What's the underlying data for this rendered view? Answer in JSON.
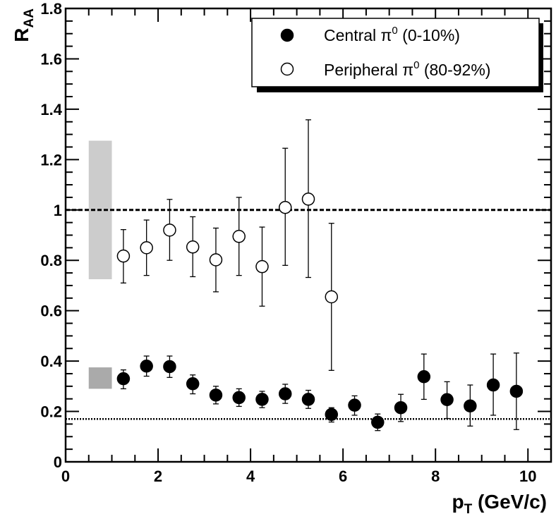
{
  "chart_data": {
    "type": "scatter",
    "title": "",
    "xlabel": {
      "main": "p",
      "sub": "T",
      "rest": " (GeV/c)"
    },
    "ylabel": {
      "main": "R",
      "sub": "AA"
    },
    "xlim": [
      0,
      10.5
    ],
    "ylim": [
      0,
      1.8
    ],
    "x_ticks": [
      {
        "value": 0,
        "label": "0"
      },
      {
        "value": 2,
        "label": "2"
      },
      {
        "value": 4,
        "label": "4"
      },
      {
        "value": 6,
        "label": "6"
      },
      {
        "value": 8,
        "label": "8"
      },
      {
        "value": 10,
        "label": "10"
      }
    ],
    "y_ticks": [
      {
        "value": 0,
        "label": "0"
      },
      {
        "value": 0.2,
        "label": "0.2"
      },
      {
        "value": 0.4,
        "label": "0.4"
      },
      {
        "value": 0.6,
        "label": "0.6"
      },
      {
        "value": 0.8,
        "label": "0.8"
      },
      {
        "value": 1.0,
        "label": "1"
      },
      {
        "value": 1.2,
        "label": "1.2"
      },
      {
        "value": 1.4,
        "label": "1.4"
      },
      {
        "value": 1.6,
        "label": "1.6"
      },
      {
        "value": 1.8,
        "label": "1.8"
      }
    ],
    "grid": false,
    "legend_position": "top-right",
    "series": [
      {
        "name": "Central",
        "legend": {
          "prefix": "Central ",
          "symbol": "π",
          "sup": "0",
          "suffix": " (0-10%)"
        },
        "marker": "filled-circle",
        "points": [
          {
            "x": 1.25,
            "y": 0.33,
            "lo": 0.29,
            "hi": 0.365
          },
          {
            "x": 1.75,
            "y": 0.38,
            "lo": 0.34,
            "hi": 0.42
          },
          {
            "x": 2.25,
            "y": 0.378,
            "lo": 0.335,
            "hi": 0.42
          },
          {
            "x": 2.75,
            "y": 0.31,
            "lo": 0.27,
            "hi": 0.345
          },
          {
            "x": 3.25,
            "y": 0.265,
            "lo": 0.23,
            "hi": 0.3
          },
          {
            "x": 3.75,
            "y": 0.255,
            "lo": 0.22,
            "hi": 0.29
          },
          {
            "x": 4.25,
            "y": 0.248,
            "lo": 0.215,
            "hi": 0.28
          },
          {
            "x": 4.75,
            "y": 0.27,
            "lo": 0.232,
            "hi": 0.308
          },
          {
            "x": 5.25,
            "y": 0.248,
            "lo": 0.212,
            "hi": 0.284
          },
          {
            "x": 5.75,
            "y": 0.188,
            "lo": 0.158,
            "hi": 0.215
          },
          {
            "x": 6.25,
            "y": 0.225,
            "lo": 0.185,
            "hi": 0.262
          },
          {
            "x": 6.75,
            "y": 0.157,
            "lo": 0.124,
            "hi": 0.19
          },
          {
            "x": 7.25,
            "y": 0.215,
            "lo": 0.16,
            "hi": 0.268
          },
          {
            "x": 7.75,
            "y": 0.338,
            "lo": 0.248,
            "hi": 0.428
          },
          {
            "x": 8.25,
            "y": 0.247,
            "lo": 0.172,
            "hi": 0.318
          },
          {
            "x": 8.75,
            "y": 0.222,
            "lo": 0.142,
            "hi": 0.305
          },
          {
            "x": 9.25,
            "y": 0.305,
            "lo": 0.185,
            "hi": 0.428
          },
          {
            "x": 9.75,
            "y": 0.28,
            "lo": 0.128,
            "hi": 0.432
          }
        ]
      },
      {
        "name": "Peripheral",
        "legend": {
          "prefix": "Peripheral ",
          "symbol": "π",
          "sup": "0",
          "suffix": " (80-92%)"
        },
        "marker": "open-circle",
        "points": [
          {
            "x": 1.25,
            "y": 0.817,
            "lo": 0.71,
            "hi": 0.922
          },
          {
            "x": 1.75,
            "y": 0.85,
            "lo": 0.74,
            "hi": 0.96
          },
          {
            "x": 2.25,
            "y": 0.92,
            "lo": 0.8,
            "hi": 1.042
          },
          {
            "x": 2.75,
            "y": 0.853,
            "lo": 0.735,
            "hi": 0.973
          },
          {
            "x": 3.25,
            "y": 0.802,
            "lo": 0.675,
            "hi": 0.928
          },
          {
            "x": 3.75,
            "y": 0.895,
            "lo": 0.74,
            "hi": 1.05
          },
          {
            "x": 4.25,
            "y": 0.775,
            "lo": 0.618,
            "hi": 0.932
          },
          {
            "x": 4.75,
            "y": 1.01,
            "lo": 0.78,
            "hi": 1.245
          },
          {
            "x": 5.25,
            "y": 1.043,
            "lo": 0.732,
            "hi": 1.358
          },
          {
            "x": 5.75,
            "y": 0.655,
            "lo": 0.363,
            "hi": 0.947
          }
        ]
      }
    ],
    "reference_lines": [
      {
        "name": "unity",
        "y": 1.0,
        "style": "dashed"
      },
      {
        "name": "central-baseline",
        "y": 0.17,
        "style": "dotted"
      }
    ],
    "uncertainty_boxes": [
      {
        "name": "peripheral-normalization",
        "x0": 0.5,
        "x1": 1.0,
        "y0": 0.725,
        "y1": 1.275,
        "color": "#cccccc"
      },
      {
        "name": "central-normalization",
        "x0": 0.5,
        "x1": 1.0,
        "y0": 0.29,
        "y1": 0.375,
        "color": "#aaaaaa"
      }
    ]
  }
}
